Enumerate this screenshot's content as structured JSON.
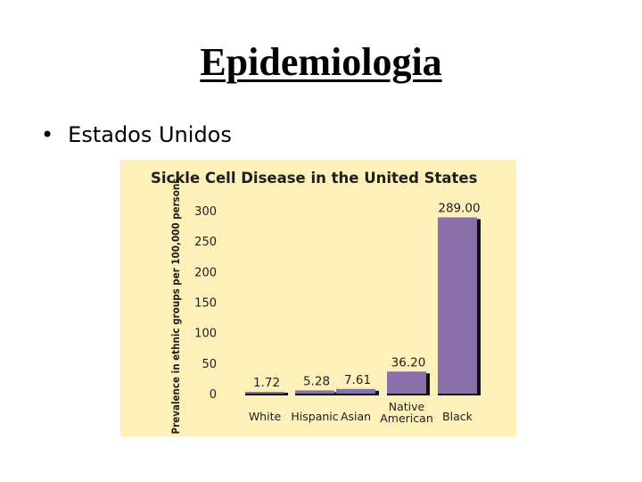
{
  "slide": {
    "title": "Epidemiologia",
    "bullets": [
      {
        "symbol": "•",
        "text": "Estados Unidos"
      }
    ]
  },
  "colors": {
    "bar_fill": "#8a6fa8",
    "bar_shadow": "#111111",
    "panel_background": "#fdf0b8"
  },
  "chart_data": {
    "type": "bar",
    "title": "Sickle Cell Disease in the United States",
    "ylabel": "Prevalence in ethnic groups per 100,000 persons",
    "xlabel": "",
    "categories": [
      [
        "White"
      ],
      [
        "Hispanic"
      ],
      [
        "Asian"
      ],
      [
        "Native",
        "American"
      ],
      [
        "Black"
      ]
    ],
    "values": [
      1.72,
      5.28,
      7.61,
      36.2,
      289.0
    ],
    "value_labels": [
      "1.72",
      "5.28",
      "7.61",
      "36.20",
      "289.00"
    ],
    "ylim": [
      0,
      300
    ],
    "yticks": [
      0,
      50,
      100,
      150,
      200,
      250,
      300
    ],
    "grid": false,
    "legend": "none"
  }
}
